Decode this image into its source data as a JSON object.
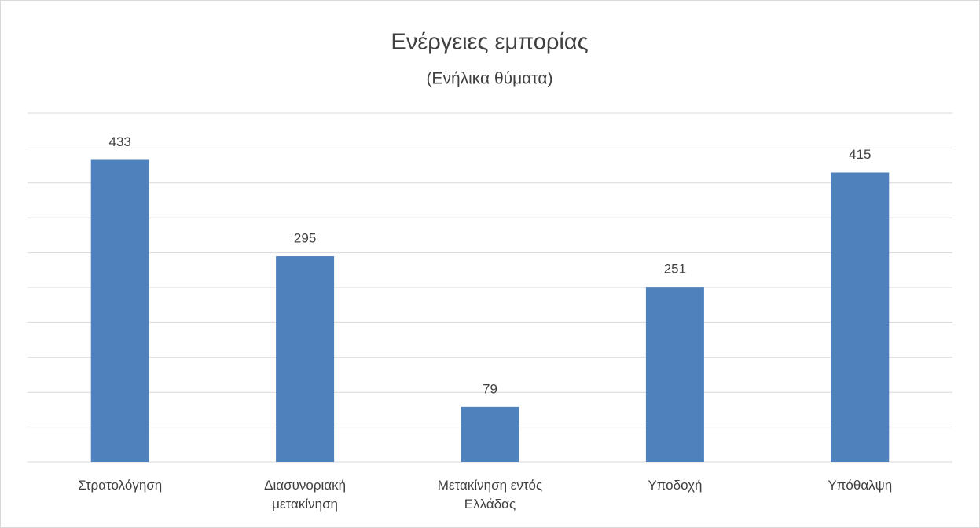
{
  "chart_data": {
    "type": "bar",
    "title": "Ενέργειες εμπορίας",
    "subtitle": "(Ενήλικα θύματα)",
    "categories": [
      "Στρατολόγηση",
      "Διασυνοριακή μετακίνηση",
      "Μετακίνηση εντός Ελλάδας",
      "Υποδοχή",
      "Υπόθαλψη"
    ],
    "values": [
      433,
      295,
      79,
      251,
      415
    ],
    "color": "#4f81bd",
    "ylim": [
      0,
      500
    ],
    "yticks": [
      0,
      50,
      100,
      150,
      200,
      250,
      300,
      350,
      400,
      450,
      500
    ],
    "grid": true
  }
}
